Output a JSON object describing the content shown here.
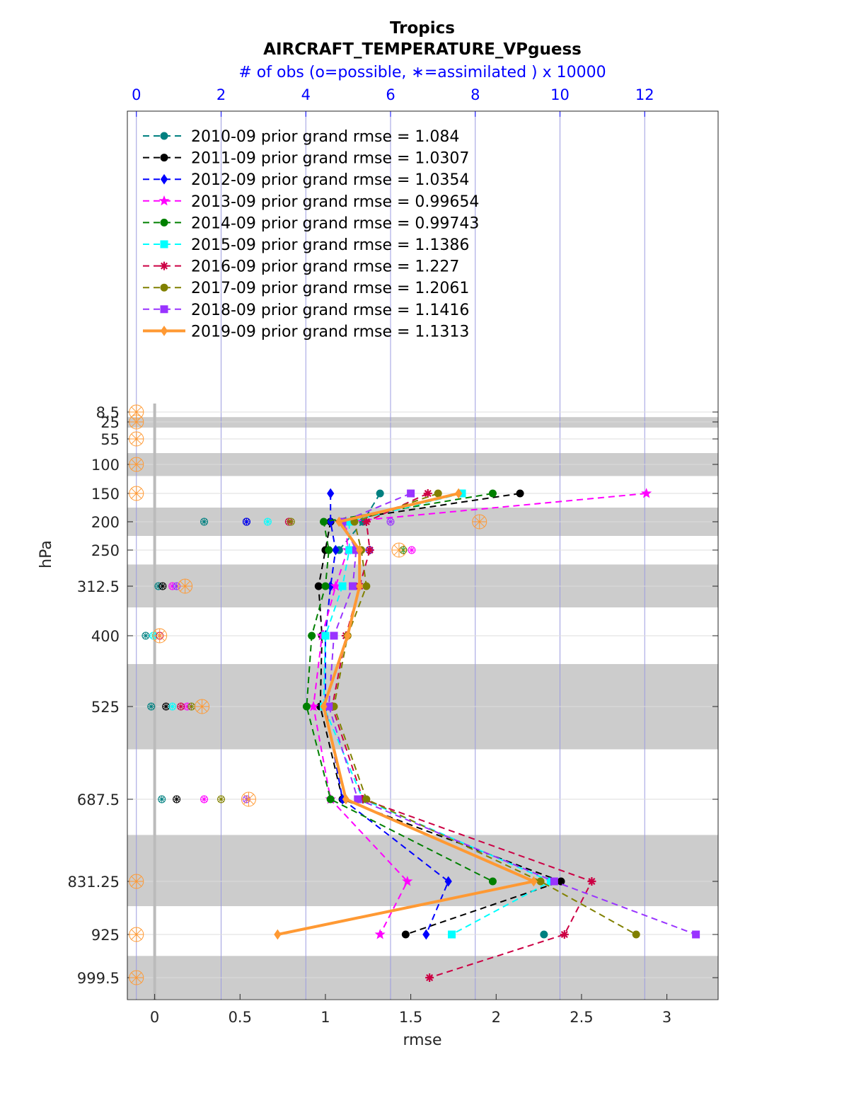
{
  "chart_data": {
    "type": "line",
    "title": "Tropics",
    "subtitle": "AIRCRAFT_TEMPERATURE_VPguess",
    "top_axis_label": "# of obs (o=possible, ∗=assimilated ) x 10000",
    "top_axis_ticks": [
      "0",
      "2",
      "4",
      "6",
      "8",
      "10",
      "12"
    ],
    "top_axis_range": [
      -0.2133,
      13.733
    ],
    "xlabel": "rmse",
    "xlim": [
      -0.16,
      3.3
    ],
    "x_ticks": [
      "0",
      "0.5",
      "1",
      "1.5",
      "2",
      "2.5",
      "3"
    ],
    "ylabel": "hPa",
    "y_axis_reversed": true,
    "levels": [
      8.5,
      25,
      55,
      100,
      150,
      200,
      250,
      312.5,
      400,
      525,
      687.5,
      831.25,
      925,
      999.5
    ],
    "level_labels": [
      "8.5",
      "25",
      "55",
      "100",
      "150",
      "200",
      "250",
      "312.5",
      "400",
      "525",
      "687.5",
      "831.25",
      "925",
      "999.5"
    ],
    "shaded_bands_hPa": [
      [
        17,
        35
      ],
      [
        80,
        120
      ],
      [
        175,
        225
      ],
      [
        275,
        350
      ],
      [
        450,
        600
      ],
      [
        750,
        875
      ],
      [
        962,
        1037
      ]
    ],
    "legend_position": "top-left",
    "series": [
      {
        "name": "2010-09 prior grand rmse = 1.084",
        "color": "#008080",
        "marker": "circle",
        "style": "dashed",
        "rmse": [
          null,
          null,
          null,
          null,
          1.32,
          1.22,
          1.08,
          null,
          null,
          null,
          null,
          null,
          2.28,
          null
        ],
        "obs_possible": [
          null,
          null,
          null,
          null,
          null,
          1.6,
          null,
          0.52,
          0.22,
          0.35,
          0.6,
          null,
          null,
          null
        ]
      },
      {
        "name": "2011-09 prior grand rmse = 1.0307",
        "color": "#000000",
        "marker": "circle",
        "style": "dashed",
        "rmse": [
          null,
          null,
          null,
          null,
          2.14,
          1.03,
          1.0,
          0.96,
          0.98,
          0.97,
          1.1,
          2.38,
          1.47,
          null
        ],
        "obs_possible": [
          null,
          null,
          null,
          null,
          null,
          2.6,
          null,
          0.62,
          null,
          0.7,
          0.95,
          null,
          null,
          null
        ]
      },
      {
        "name": "2012-09 prior grand rmse = 1.0354",
        "color": "#0000ff",
        "marker": "diamond",
        "style": "dashed",
        "rmse": [
          null,
          null,
          null,
          null,
          1.03,
          1.03,
          1.06,
          1.03,
          1.0,
          1.0,
          1.1,
          1.72,
          1.59,
          null
        ],
        "obs_possible": [
          null,
          null,
          null,
          null,
          null,
          2.6,
          5.5,
          null,
          null,
          null,
          null,
          null,
          null,
          null
        ]
      },
      {
        "name": "2013-09 prior grand rmse = 0.99654",
        "color": "#ff00ff",
        "marker": "pentagram",
        "style": "dashed",
        "rmse": [
          null,
          null,
          null,
          null,
          2.88,
          1.12,
          1.13,
          1.06,
          0.98,
          0.93,
          1.03,
          1.48,
          1.32,
          null
        ],
        "obs_possible": [
          null,
          null,
          null,
          null,
          null,
          null,
          6.5,
          0.85,
          null,
          1.2,
          1.6,
          null,
          null,
          null
        ]
      },
      {
        "name": "2014-09 prior grand rmse = 0.99743",
        "color": "#008000",
        "marker": "circle",
        "style": "dashed",
        "rmse": [
          null,
          null,
          null,
          null,
          1.98,
          0.99,
          1.02,
          1.0,
          0.92,
          0.89,
          1.03,
          1.98,
          null,
          null
        ],
        "obs_possible": [
          null,
          null,
          null,
          null,
          null,
          null,
          6.3,
          null,
          null,
          null,
          null,
          null,
          null,
          null
        ]
      },
      {
        "name": "2015-09 prior grand rmse = 1.1386",
        "color": "#00ffff",
        "marker": "square",
        "style": "dashed",
        "rmse": [
          null,
          null,
          null,
          null,
          1.8,
          1.14,
          1.14,
          1.1,
          1.0,
          0.99,
          1.22,
          2.32,
          1.74,
          null
        ],
        "obs_possible": [
          null,
          null,
          null,
          null,
          null,
          3.1,
          null,
          null,
          0.4,
          0.85,
          null,
          null,
          null,
          null
        ]
      },
      {
        "name": "2016-09 prior grand rmse = 1.227",
        "color": "#cc0044",
        "marker": "asterisk",
        "style": "dashed",
        "rmse": [
          null,
          null,
          null,
          null,
          1.6,
          1.24,
          1.26,
          1.2,
          1.12,
          1.04,
          1.22,
          2.56,
          2.4,
          1.61
        ],
        "obs_possible": [
          null,
          null,
          null,
          null,
          null,
          3.6,
          null,
          null,
          0.55,
          1.05,
          null,
          null,
          null,
          null
        ]
      },
      {
        "name": "2017-09 prior grand rmse = 1.2061",
        "color": "#808000",
        "marker": "circle",
        "style": "dashed",
        "rmse": [
          null,
          null,
          null,
          null,
          1.66,
          1.17,
          1.21,
          1.24,
          1.13,
          1.05,
          1.24,
          2.26,
          2.82,
          null
        ],
        "obs_possible": [
          null,
          null,
          null,
          null,
          null,
          3.65,
          null,
          null,
          null,
          1.3,
          2.0,
          null,
          null,
          null
        ]
      },
      {
        "name": "2018-09 prior grand rmse = 1.1416",
        "color": "#9933ff",
        "marker": "square",
        "style": "dashed",
        "rmse": [
          null,
          null,
          null,
          null,
          1.5,
          1.1,
          1.18,
          1.16,
          1.05,
          1.02,
          1.19,
          2.34,
          3.17,
          null
        ],
        "obs_possible": [
          null,
          null,
          null,
          null,
          null,
          6.0,
          null,
          0.95,
          null,
          null,
          2.6,
          null,
          null,
          null
        ]
      },
      {
        "name": "2019-09 prior grand rmse = 1.1313",
        "color": "#ff9933",
        "marker": "diamond",
        "style": "solid",
        "rmse": [
          null,
          null,
          null,
          null,
          1.78,
          1.08,
          1.2,
          1.2,
          1.13,
          0.99,
          1.12,
          2.22,
          0.72,
          null
        ],
        "obs_possible": [
          0.0,
          0.0,
          0.0,
          0.0,
          0.0,
          8.1,
          6.2,
          1.15,
          0.55,
          1.55,
          2.65,
          0.0,
          0.0,
          0.0
        ]
      }
    ]
  }
}
